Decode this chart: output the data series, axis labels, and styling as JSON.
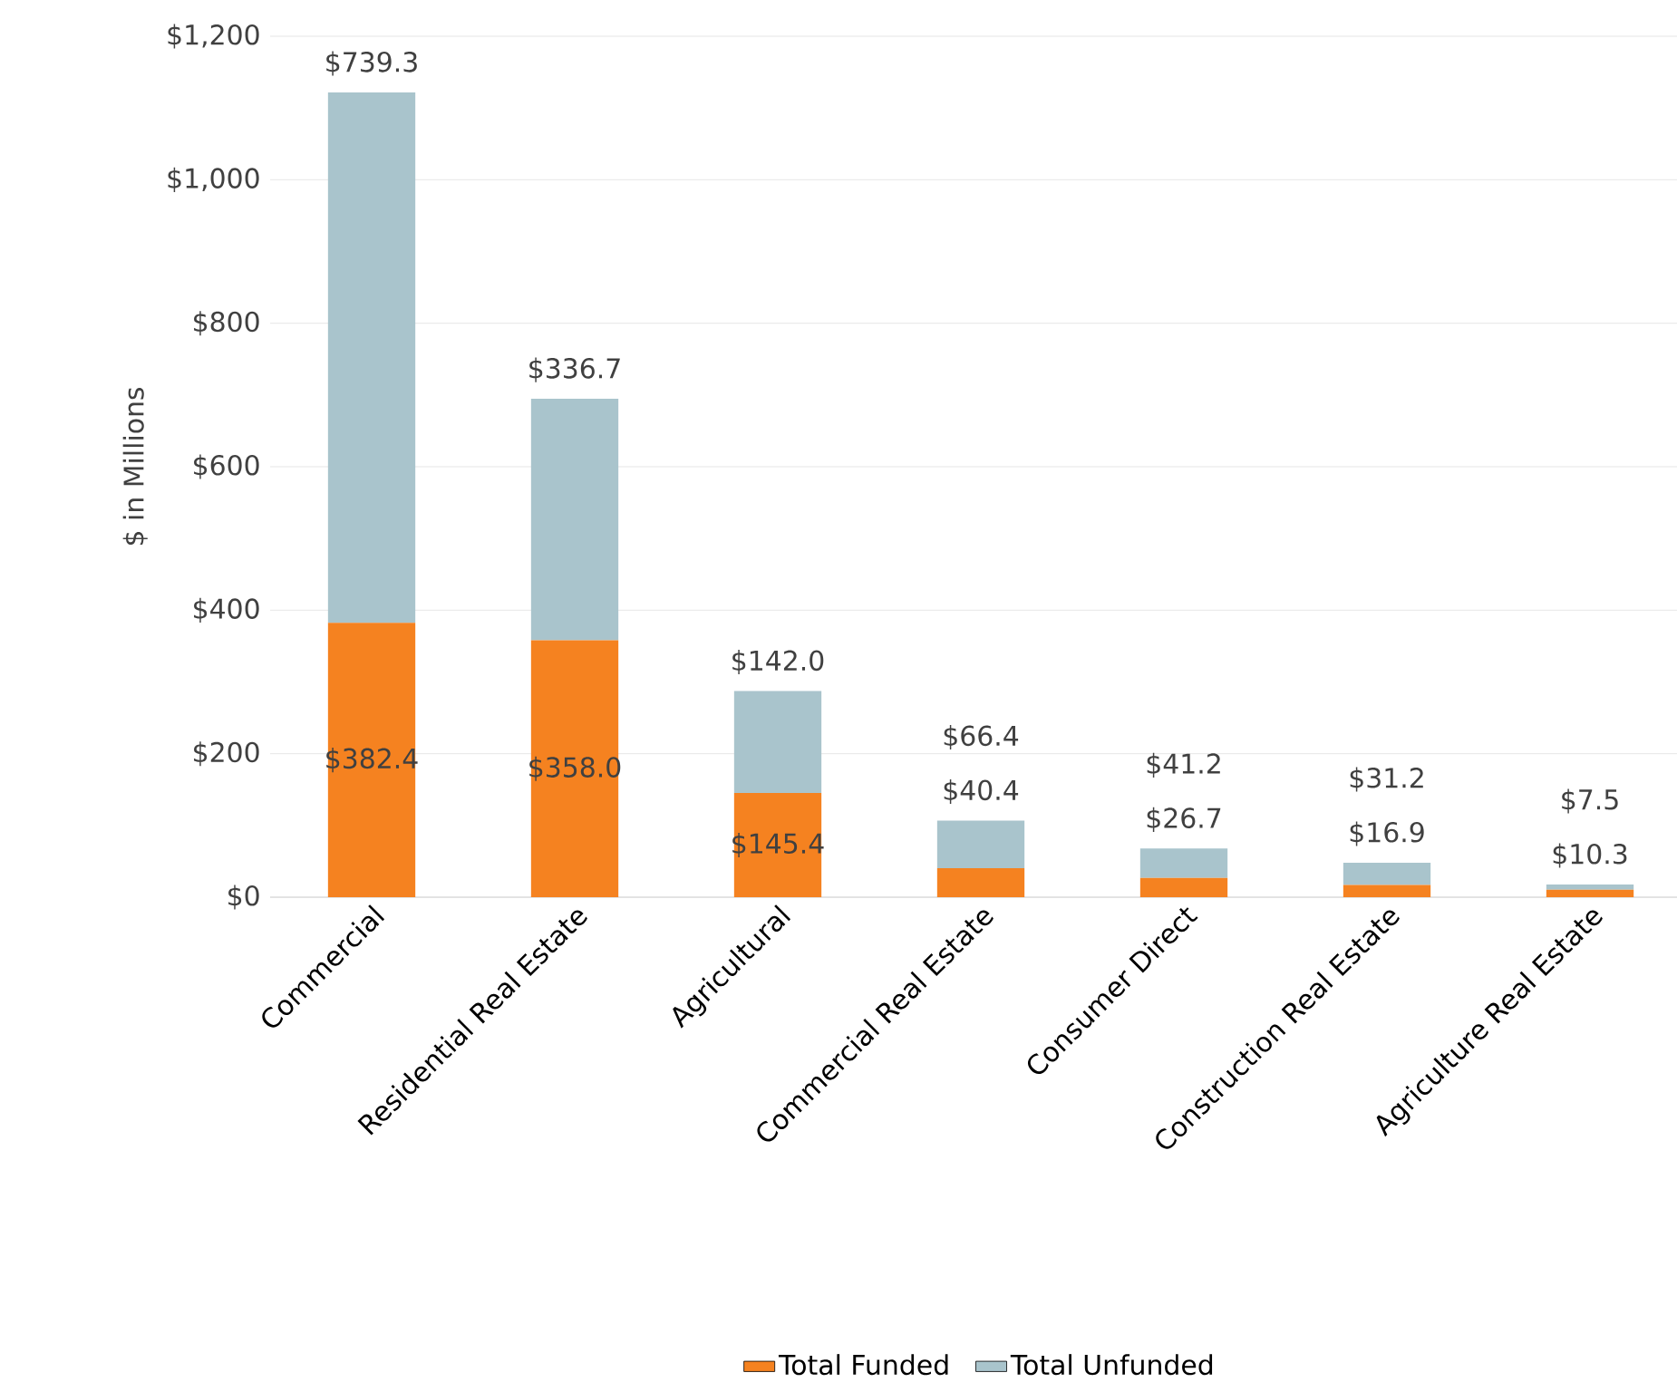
{
  "chart_data": {
    "type": "bar",
    "stacked": true,
    "ylabel": "$ in Millions",
    "categories": [
      "Commercial",
      "Residential Real Estate",
      "Agricultural",
      "Commercial Real Estate",
      "Consumer Direct",
      "Construction Real Estate",
      "Agriculture Real Estate"
    ],
    "series": [
      {
        "name": "Total Funded",
        "color": "#f58220",
        "values": [
          382.4,
          358.0,
          145.4,
          40.4,
          26.7,
          16.9,
          10.3
        ],
        "value_labels": [
          "$382.4",
          "$358.0",
          "$145.4",
          "$40.4",
          "$26.7",
          "$16.9",
          "$10.3"
        ]
      },
      {
        "name": "Total Unfunded",
        "color": "#a9c4cc",
        "values": [
          739.3,
          336.7,
          142.0,
          66.4,
          41.2,
          31.2,
          7.5
        ],
        "value_labels": [
          "$739.3",
          "$336.7",
          "$142.0",
          "$66.4",
          "$41.2",
          "$31.2",
          "$7.5"
        ]
      }
    ],
    "ylim": [
      0,
      1200
    ],
    "yticks": [
      {
        "value": 0,
        "label": "$0"
      },
      {
        "value": 200,
        "label": "$200"
      },
      {
        "value": 400,
        "label": "$400"
      },
      {
        "value": 600,
        "label": "$600"
      },
      {
        "value": 800,
        "label": "$800"
      },
      {
        "value": 1000,
        "label": "$1,000"
      },
      {
        "value": 1200,
        "label": "$1,200"
      }
    ],
    "grid": "y",
    "legend": "bottom"
  }
}
